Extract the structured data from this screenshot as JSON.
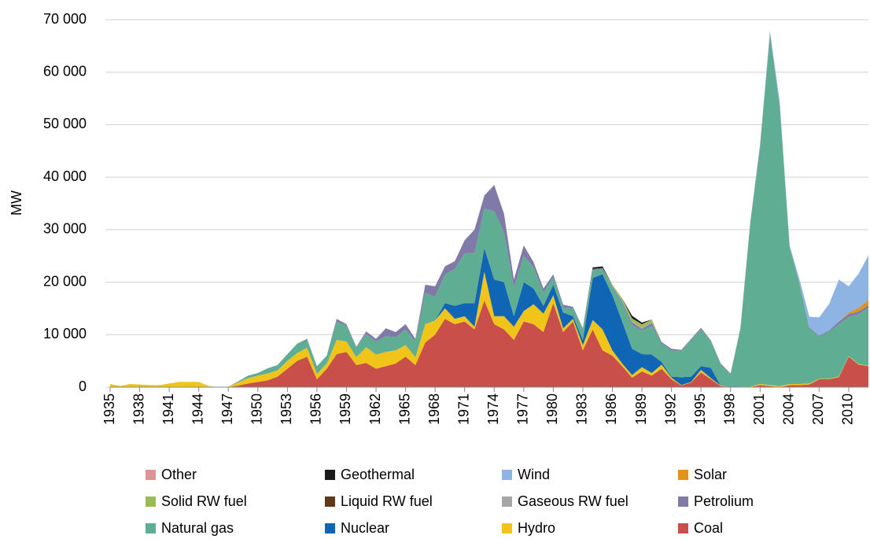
{
  "chart_data": {
    "type": "stacked_area",
    "ylabel": "MW",
    "x": [
      1935,
      1936,
      1937,
      1938,
      1939,
      1940,
      1941,
      1942,
      1943,
      1944,
      1945,
      1946,
      1947,
      1948,
      1949,
      1950,
      1951,
      1952,
      1953,
      1954,
      1955,
      1956,
      1957,
      1958,
      1959,
      1960,
      1961,
      1962,
      1963,
      1964,
      1965,
      1966,
      1967,
      1968,
      1969,
      1970,
      1971,
      1972,
      1973,
      1974,
      1975,
      1976,
      1977,
      1978,
      1979,
      1980,
      1981,
      1982,
      1983,
      1984,
      1985,
      1986,
      1987,
      1988,
      1989,
      1990,
      1991,
      1992,
      1993,
      1994,
      1995,
      1996,
      1997,
      1998,
      1999,
      2000,
      2001,
      2002,
      2003,
      2004,
      2005,
      2006,
      2007,
      2008,
      2009,
      2010,
      2011,
      2012
    ],
    "xlim": [
      1935,
      2012
    ],
    "xticks": [
      1935,
      1938,
      1941,
      1944,
      1947,
      1950,
      1953,
      1956,
      1959,
      1962,
      1965,
      1968,
      1971,
      1974,
      1977,
      1980,
      1983,
      1986,
      1989,
      1992,
      1995,
      1998,
      2001,
      2004,
      2007,
      2010
    ],
    "ylim": [
      0,
      70000
    ],
    "yticks": [
      0,
      {
        "value": 10000,
        "label": "10 000"
      },
      {
        "value": 20000,
        "label": "20 000"
      },
      {
        "value": 30000,
        "label": "30 000"
      },
      {
        "value": 40000,
        "label": "40 000"
      },
      {
        "value": 50000,
        "label": "50 000"
      },
      {
        "value": 60000,
        "label": "60 000"
      },
      {
        "value": 70000,
        "label": "70 000"
      }
    ],
    "grid": true,
    "legend": "bottom",
    "series": [
      {
        "name": "Other",
        "color": "#d99694",
        "values": [
          0,
          0,
          0,
          0,
          0,
          0,
          0,
          0,
          0,
          0,
          0,
          0,
          0,
          0,
          0,
          0,
          0,
          0,
          0,
          0,
          0,
          0,
          0,
          0,
          0,
          0,
          0,
          0,
          0,
          0,
          0,
          0,
          0,
          0,
          0,
          0,
          0,
          0,
          0,
          0,
          0,
          0,
          0,
          0,
          0,
          0,
          0,
          0,
          0,
          0,
          0,
          0,
          0,
          0,
          0,
          0,
          0,
          0,
          0,
          0,
          0,
          0,
          0,
          0,
          0,
          0,
          0,
          0,
          0,
          0,
          0,
          0,
          0,
          0,
          0,
          0,
          0,
          0
        ]
      },
      {
        "name": "Geothermal",
        "color": "#1a1a1a",
        "values": [
          0,
          0,
          0,
          0,
          0,
          0,
          0,
          0,
          0,
          0,
          0,
          0,
          0,
          0,
          0,
          0,
          0,
          0,
          0,
          0,
          0,
          0,
          0,
          0,
          0,
          0,
          0,
          0,
          0,
          0,
          0,
          0,
          0,
          0,
          0,
          0,
          0,
          0,
          0,
          0,
          0,
          0,
          0,
          0,
          0,
          0,
          0,
          0,
          0,
          300,
          300,
          0,
          0,
          500,
          300,
          0,
          0,
          0,
          0,
          0,
          0,
          0,
          0,
          0,
          0,
          0,
          0,
          0,
          0,
          0,
          0,
          0,
          0,
          0,
          0,
          0,
          0,
          0
        ]
      },
      {
        "name": "Wind",
        "color": "#8db4e2",
        "values": [
          0,
          0,
          0,
          0,
          0,
          0,
          0,
          0,
          0,
          0,
          0,
          0,
          0,
          0,
          0,
          0,
          0,
          0,
          0,
          0,
          0,
          0,
          0,
          0,
          0,
          0,
          0,
          0,
          0,
          0,
          0,
          0,
          0,
          0,
          0,
          0,
          0,
          0,
          0,
          0,
          0,
          0,
          0,
          0,
          0,
          0,
          0,
          0,
          0,
          0,
          0,
          0,
          0,
          0,
          0,
          0,
          0,
          0,
          0,
          0,
          0,
          0,
          0,
          0,
          0,
          0,
          300,
          500,
          500,
          200,
          700,
          2000,
          3500,
          5000,
          8000,
          5000,
          6500,
          8500
        ]
      },
      {
        "name": "Solar",
        "color": "#e3921a",
        "values": [
          0,
          0,
          0,
          0,
          0,
          0,
          0,
          0,
          0,
          0,
          0,
          0,
          0,
          0,
          0,
          0,
          0,
          0,
          0,
          0,
          0,
          0,
          0,
          0,
          0,
          0,
          0,
          0,
          0,
          0,
          0,
          0,
          0,
          0,
          0,
          0,
          0,
          0,
          0,
          0,
          0,
          0,
          0,
          0,
          0,
          0,
          0,
          0,
          0,
          0,
          0,
          0,
          0,
          0,
          0,
          0,
          0,
          0,
          0,
          0,
          0,
          0,
          0,
          0,
          0,
          0,
          0,
          0,
          0,
          0,
          0,
          0,
          0,
          0,
          0,
          300,
          700,
          1000
        ]
      },
      {
        "name": "Solid RW fuel",
        "color": "#9bbb59",
        "values": [
          0,
          0,
          0,
          0,
          0,
          0,
          0,
          0,
          0,
          0,
          0,
          0,
          0,
          0,
          0,
          0,
          0,
          0,
          0,
          0,
          0,
          0,
          0,
          0,
          0,
          0,
          0,
          0,
          0,
          0,
          0,
          0,
          0,
          0,
          0,
          0,
          0,
          0,
          0,
          0,
          0,
          0,
          0,
          0,
          0,
          0,
          0,
          0,
          0,
          0,
          0,
          300,
          400,
          600,
          700,
          500,
          0,
          0,
          0,
          0,
          0,
          0,
          0,
          0,
          0,
          0,
          0,
          0,
          0,
          0,
          0,
          0,
          0,
          0,
          0,
          0,
          0,
          0
        ]
      },
      {
        "name": "Liquid RW fuel",
        "color": "#5e3a1a",
        "values": [
          0,
          0,
          0,
          0,
          0,
          0,
          0,
          0,
          0,
          0,
          0,
          0,
          0,
          0,
          0,
          0,
          0,
          0,
          0,
          0,
          0,
          0,
          0,
          0,
          0,
          0,
          0,
          0,
          0,
          0,
          0,
          0,
          0,
          0,
          0,
          0,
          0,
          0,
          0,
          0,
          0,
          0,
          0,
          0,
          0,
          0,
          0,
          0,
          0,
          0,
          0,
          0,
          0,
          0,
          0,
          0,
          0,
          0,
          0,
          0,
          0,
          0,
          0,
          0,
          0,
          0,
          0,
          0,
          0,
          0,
          0,
          0,
          0,
          0,
          0,
          0,
          0,
          0
        ]
      },
      {
        "name": "Gaseous RW fuel",
        "color": "#a6a6a6",
        "values": [
          0,
          0,
          0,
          0,
          0,
          0,
          0,
          0,
          0,
          0,
          0,
          0,
          0,
          0,
          0,
          0,
          0,
          0,
          0,
          0,
          0,
          0,
          0,
          0,
          0,
          0,
          0,
          0,
          0,
          0,
          0,
          0,
          0,
          0,
          0,
          0,
          0,
          0,
          0,
          0,
          0,
          0,
          0,
          0,
          0,
          0,
          0,
          0,
          0,
          0,
          0,
          0,
          200,
          200,
          200,
          200,
          0,
          0,
          0,
          0,
          0,
          0,
          0,
          0,
          0,
          0,
          0,
          0,
          0,
          0,
          0,
          0,
          0,
          0,
          0,
          0,
          0,
          0
        ]
      },
      {
        "name": "Petrolium",
        "color": "#7f7aa8",
        "values": [
          0,
          0,
          0,
          0,
          0,
          0,
          0,
          0,
          0,
          0,
          0,
          0,
          0,
          0,
          0,
          0,
          0,
          0,
          0,
          0,
          200,
          0,
          0,
          500,
          300,
          0,
          500,
          500,
          1500,
          1000,
          1000,
          500,
          1500,
          2000,
          1500,
          1500,
          2500,
          4500,
          2500,
          5000,
          3500,
          1500,
          2000,
          1000,
          800,
          500,
          500,
          300,
          200,
          200,
          200,
          200,
          300,
          500,
          300,
          500,
          300,
          300,
          200,
          200,
          300,
          200,
          200,
          100,
          100,
          300,
          500,
          500,
          500,
          200,
          200,
          200,
          200,
          200,
          500,
          500,
          500,
          500
        ]
      },
      {
        "name": "Natural gas",
        "color": "#5fae93",
        "values": [
          0,
          0,
          0,
          0,
          0,
          0,
          0,
          0,
          0,
          0,
          0,
          0,
          0,
          200,
          500,
          500,
          1000,
          1000,
          1300,
          1800,
          1500,
          1500,
          1500,
          3500,
          3000,
          2000,
          2500,
          2500,
          3000,
          2500,
          3000,
          3000,
          6000,
          4500,
          5500,
          7000,
          9500,
          9500,
          7500,
          13000,
          9500,
          5500,
          5000,
          4000,
          2500,
          1500,
          1000,
          1500,
          2000,
          1500,
          1000,
          1500,
          3500,
          4500,
          4500,
          5500,
          3500,
          5000,
          5000,
          7000,
          7000,
          5000,
          4000,
          2500,
          11000,
          31000,
          45000,
          66500,
          53000,
          26000,
          19000,
          10500,
          8000,
          9000,
          10000,
          7500,
          9500,
          11000
        ]
      },
      {
        "name": "Nuclear",
        "color": "#1066b4",
        "values": [
          0,
          0,
          0,
          0,
          0,
          0,
          0,
          0,
          0,
          0,
          0,
          0,
          0,
          0,
          0,
          0,
          0,
          0,
          0,
          0,
          0,
          0,
          0,
          0,
          0,
          0,
          0,
          0,
          0,
          0,
          0,
          0,
          0,
          0,
          1000,
          2500,
          2500,
          4500,
          4500,
          7000,
          6500,
          2000,
          5500,
          3000,
          1500,
          2000,
          3000,
          500,
          1000,
          8000,
          10500,
          10500,
          8000,
          5000,
          2500,
          3500,
          500,
          200,
          1500,
          1000,
          700,
          2000,
          0,
          0,
          0,
          0,
          0,
          0,
          0,
          0,
          0,
          0,
          0,
          0,
          0,
          0,
          0,
          0
        ]
      },
      {
        "name": "Hydro",
        "color": "#f0c419",
        "values": [
          600,
          200,
          600,
          500,
          400,
          400,
          700,
          1000,
          1000,
          1000,
          200,
          0,
          100,
          600,
          1000,
          1200,
          1300,
          1200,
          1500,
          1500,
          1700,
          1000,
          1000,
          2700,
          2000,
          1500,
          3000,
          2700,
          2700,
          2500,
          2200,
          1500,
          3500,
          2700,
          2000,
          1000,
          1000,
          500,
          5500,
          1500,
          2500,
          2500,
          2000,
          3800,
          3500,
          1500,
          700,
          500,
          1000,
          1800,
          4000,
          1000,
          500,
          500,
          800,
          500,
          800,
          300,
          100,
          100,
          500,
          200,
          100,
          0,
          100,
          100,
          200,
          200,
          200,
          200,
          200,
          200,
          100,
          100,
          100,
          100,
          100,
          100
        ]
      },
      {
        "name": "Coal",
        "color": "#c9504a",
        "values": [
          0,
          0,
          0,
          0,
          0,
          0,
          0,
          0,
          0,
          0,
          0,
          0,
          0,
          300,
          700,
          1000,
          1300,
          2000,
          3500,
          5000,
          5800,
          1500,
          3500,
          6300,
          6700,
          4200,
          4600,
          3500,
          4000,
          4500,
          5800,
          4200,
          8500,
          10000,
          13000,
          12000,
          12500,
          11000,
          16500,
          12000,
          11000,
          9000,
          12500,
          12000,
          10500,
          16000,
          10500,
          12500,
          7000,
          11000,
          7000,
          6000,
          4000,
          1800,
          3000,
          2200,
          3500,
          1500,
          300,
          900,
          2800,
          1500,
          200,
          0,
          0,
          0,
          400,
          200,
          0,
          400,
          400,
          500,
          1500,
          1500,
          1900,
          5800,
          4300,
          4000
        ]
      }
    ]
  }
}
